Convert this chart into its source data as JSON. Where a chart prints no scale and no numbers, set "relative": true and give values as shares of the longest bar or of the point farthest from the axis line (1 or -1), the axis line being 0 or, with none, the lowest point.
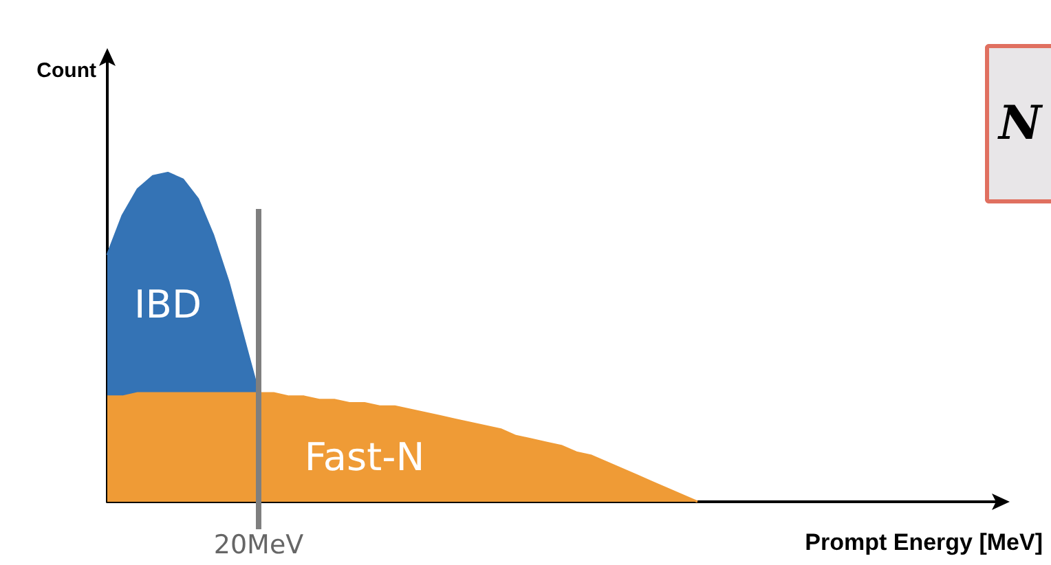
{
  "chart_data": {
    "type": "area",
    "relative": true,
    "ylabel": "Count",
    "xlabel": "Prompt Energy [MeV]",
    "categories": [
      null,
      null,
      null,
      null,
      null,
      null,
      null,
      null,
      null,
      null,
      null,
      null,
      null,
      null,
      null,
      null,
      null,
      null,
      null,
      null,
      null,
      null,
      null,
      null,
      null,
      null,
      null,
      null,
      null,
      null,
      null,
      null,
      null,
      null,
      null,
      null,
      null,
      null,
      null,
      null,
      null,
      null,
      null,
      null,
      null,
      null,
      null,
      null,
      null,
      null,
      null,
      null,
      null,
      null,
      null,
      null,
      null,
      null,
      null,
      null
    ],
    "series": [
      {
        "name": "IBD",
        "color": "#3473b5",
        "values": [
          0.75,
          0.87,
          0.95,
          0.99,
          1,
          0.98,
          0.92,
          0.81,
          0.67,
          0.5,
          0.33,
          null,
          null,
          null,
          null,
          null,
          null,
          null,
          null,
          null,
          null,
          null,
          null,
          null,
          null,
          null,
          null,
          null,
          null,
          null,
          null,
          null,
          null,
          null,
          null,
          null,
          null,
          null,
          null,
          null,
          null,
          null,
          null,
          null,
          null,
          null,
          null,
          null,
          null,
          null,
          null,
          null,
          null,
          null,
          null,
          null,
          null,
          null,
          null,
          null
        ]
      },
      {
        "name": "Fast-N",
        "color": "#ef9b36",
        "values": [
          0.32,
          0.32,
          0.33,
          0.33,
          0.33,
          0.33,
          0.33,
          0.33,
          0.33,
          0.33,
          0.33,
          0.33,
          0.32,
          0.32,
          0.31,
          0.31,
          0.3,
          0.3,
          0.29,
          0.29,
          0.28,
          0.27,
          0.26,
          0.25,
          0.24,
          0.23,
          0.22,
          0.2,
          0.19,
          0.18,
          0.17,
          0.15,
          0.14,
          0.12,
          0.1,
          0.08,
          0.06,
          0.04,
          0.02,
          0,
          null,
          null,
          null,
          null,
          null,
          null,
          null,
          null,
          null,
          null,
          null,
          null,
          null,
          null,
          null,
          null,
          null,
          null,
          null,
          null
        ]
      }
    ],
    "annotations": [
      {
        "text": "20MeV"
      },
      "N"
    ]
  }
}
